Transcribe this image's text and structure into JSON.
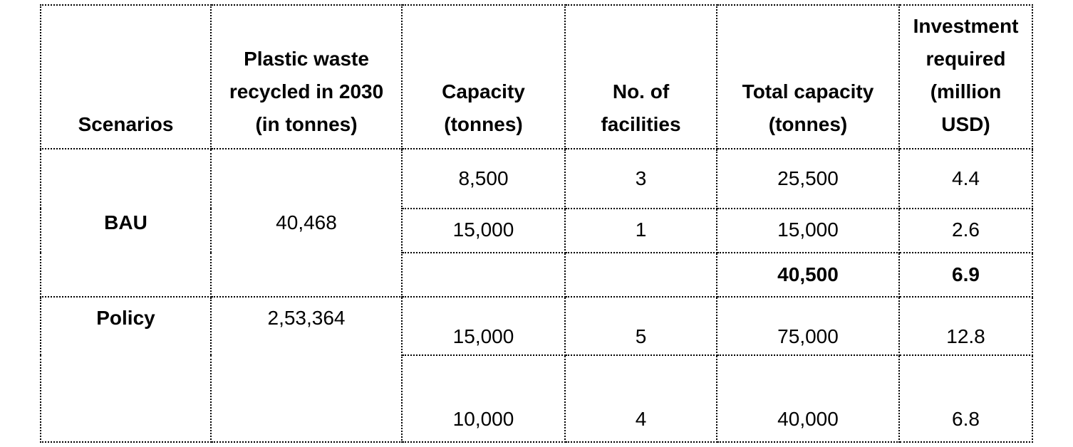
{
  "table": {
    "headers": [
      {
        "lines": [
          "Scenarios"
        ]
      },
      {
        "lines": [
          "Plastic waste",
          "recycled in 2030",
          "(in tonnes)"
        ]
      },
      {
        "lines": [
          "Capacity",
          "(tonnes)"
        ]
      },
      {
        "lines": [
          "No. of",
          "facilities"
        ]
      },
      {
        "lines": [
          "Total capacity",
          "(tonnes)"
        ]
      },
      {
        "lines": [
          "Investment",
          "required",
          "(million",
          "USD)"
        ]
      }
    ],
    "bau": {
      "scenario": "BAU",
      "recycled": "40,468",
      "rows": [
        {
          "capacity": "8,500",
          "facilities": "3",
          "total": "25,500",
          "investment": "4.4"
        },
        {
          "capacity": "15,000",
          "facilities": "1",
          "total": "15,000",
          "investment": "2.6"
        },
        {
          "capacity": "",
          "facilities": "",
          "total": "40,500",
          "investment": "6.9"
        }
      ]
    },
    "policy": {
      "scenario": "Policy",
      "recycled": "2,53,364",
      "rows": [
        {
          "capacity": "15,000",
          "facilities": "5",
          "total": "75,000",
          "investment": "12.8"
        },
        {
          "capacity": "10,000",
          "facilities": "4",
          "total": "40,000",
          "investment": "6.8"
        }
      ]
    }
  }
}
